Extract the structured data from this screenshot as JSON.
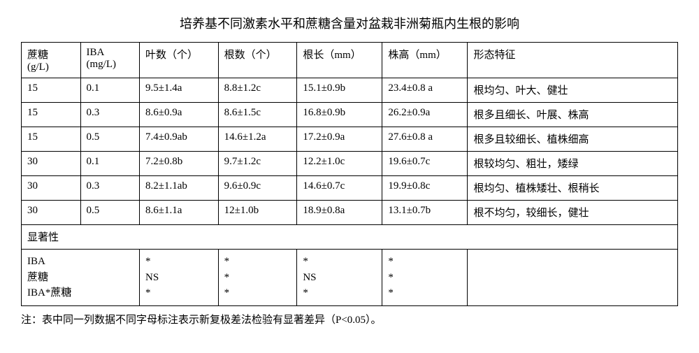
{
  "title": "培养基不同激素水平和蔗糖含量对盆栽非洲菊瓶内生根的影响",
  "headers": {
    "c0a": "蔗糖",
    "c0b": "(g/L)",
    "c1a": "IBA",
    "c1b": "(mg/L)",
    "c2": "叶数（个）",
    "c3": "根数（个）",
    "c4": "根长（mm）",
    "c5": "株高（mm）",
    "c6": "形态特征"
  },
  "rows": [
    {
      "c0": "15",
      "c1": "0.1",
      "c2": "9.5±1.4a",
      "c3": "8.8±1.2c",
      "c4": "15.1±0.9b",
      "c5": "23.4±0.8 a",
      "c6": "根均匀、叶大、健壮"
    },
    {
      "c0": "15",
      "c1": "0.3",
      "c2": "8.6±0.9a",
      "c3": "8.6±1.5c",
      "c4": "16.8±0.9b",
      "c5": "26.2±0.9a",
      "c6": "根多且细长、叶展、株高"
    },
    {
      "c0": "15",
      "c1": "0.5",
      "c2": "7.4±0.9ab",
      "c3": "14.6±1.2a",
      "c4": "17.2±0.9a",
      "c5": "27.6±0.8 a",
      "c6": "根多且较细长、植株细高"
    },
    {
      "c0": "30",
      "c1": "0.1",
      "c2": "7.2±0.8b",
      "c3": "9.7±1.2c",
      "c4": "12.2±1.0c",
      "c5": "19.6±0.7c",
      "c6": "根较均匀、粗壮，矮绿"
    },
    {
      "c0": "30",
      "c1": "0.3",
      "c2": "8.2±1.1ab",
      "c3": "9.6±0.9c",
      "c4": "14.6±0.7c",
      "c5": "19.9±0.8c",
      "c6": "根均匀、植株矮壮、根稍长"
    },
    {
      "c0": "30",
      "c1": "0.5",
      "c2": "8.6±1.1a",
      "c3": "12±1.0b",
      "c4": "18.9±0.8a",
      "c5": "13.1±0.7b",
      "c6": "根不均匀，较细长，健壮"
    }
  ],
  "sig_label": "显著性",
  "sig": {
    "labels": [
      "IBA",
      "蔗糖",
      "IBA*蔗糖"
    ],
    "cols": [
      [
        "*",
        "NS",
        "*"
      ],
      [
        "*",
        "*",
        "*"
      ],
      [
        "*",
        "NS",
        "*"
      ],
      [
        "*",
        "*",
        "*"
      ]
    ]
  },
  "note": "注：表中同一列数据不同字母标注表示新复极差法检验有显著差异（P<0.05）。"
}
